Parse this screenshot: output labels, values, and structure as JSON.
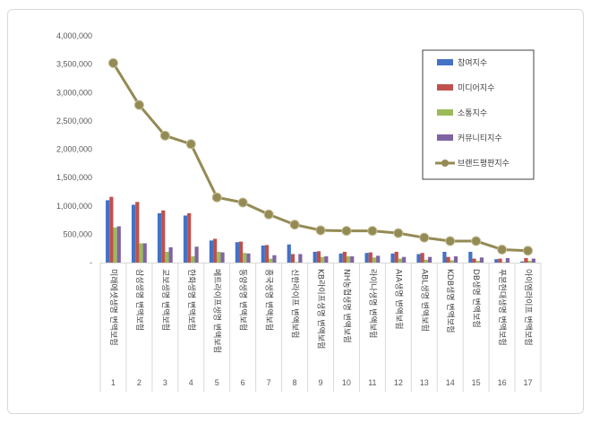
{
  "chart_data": {
    "type": "bar",
    "title": "",
    "xlabel": "",
    "ylabel": "",
    "ylim": [
      0,
      4000000
    ],
    "yticks": [
      "-",
      "500,000",
      "1,000,000",
      "1,500,000",
      "2,000,000",
      "2,500,000",
      "3,000,000",
      "3,500,000",
      "4,000,000"
    ],
    "grid": false,
    "legend_position": "top-right",
    "index_labels": [
      "1",
      "2",
      "3",
      "4",
      "5",
      "6",
      "7",
      "8",
      "9",
      "10",
      "11",
      "12",
      "13",
      "14",
      "15",
      "16",
      "17"
    ],
    "categories": [
      "미래에셋생명 변액보험",
      "삼성생명 변액보험",
      "교보생명 변액보험",
      "한화생명 변액보험",
      "메트라이프생명 변액보험",
      "동양생명 변액보험",
      "흥국생명 변액보험",
      "신한라이프 변액보험",
      "KB라이프생명 변액보험",
      "NH농협생명 변액보험",
      "라이나생명 변액보험",
      "AIA생명 변액보험",
      "ABL생명 변액보험",
      "KDB생명 변액보험",
      "DB생명 변액보험",
      "푸본현대생명 변액보험",
      "아이엠라이프 변액보험"
    ],
    "series": [
      {
        "name": "참여지수",
        "type": "bar",
        "color": "#4472c4",
        "values": [
          1100000,
          1020000,
          870000,
          830000,
          390000,
          360000,
          300000,
          320000,
          190000,
          160000,
          170000,
          160000,
          150000,
          190000,
          190000,
          60000,
          20000
        ]
      },
      {
        "name": "미디어지수",
        "type": "bar",
        "color": "#c0504d",
        "values": [
          1160000,
          1070000,
          920000,
          870000,
          420000,
          370000,
          310000,
          150000,
          200000,
          190000,
          180000,
          190000,
          170000,
          100000,
          70000,
          70000,
          80000
        ]
      },
      {
        "name": "소통지수",
        "type": "bar",
        "color": "#9bbb59",
        "values": [
          620000,
          340000,
          190000,
          110000,
          190000,
          170000,
          70000,
          10000,
          100000,
          110000,
          90000,
          70000,
          50000,
          40000,
          30000,
          10000,
          30000
        ]
      },
      {
        "name": "커뮤니티지수",
        "type": "bar",
        "color": "#8064a2",
        "values": [
          640000,
          340000,
          270000,
          280000,
          180000,
          160000,
          130000,
          150000,
          110000,
          110000,
          120000,
          100000,
          100000,
          110000,
          90000,
          80000,
          70000
        ]
      },
      {
        "name": "브랜드평판지수",
        "type": "line",
        "color": "#948a54",
        "values": [
          3520000,
          2780000,
          2240000,
          2090000,
          1150000,
          1060000,
          850000,
          670000,
          570000,
          560000,
          560000,
          520000,
          440000,
          380000,
          380000,
          230000,
          210000
        ]
      }
    ]
  }
}
